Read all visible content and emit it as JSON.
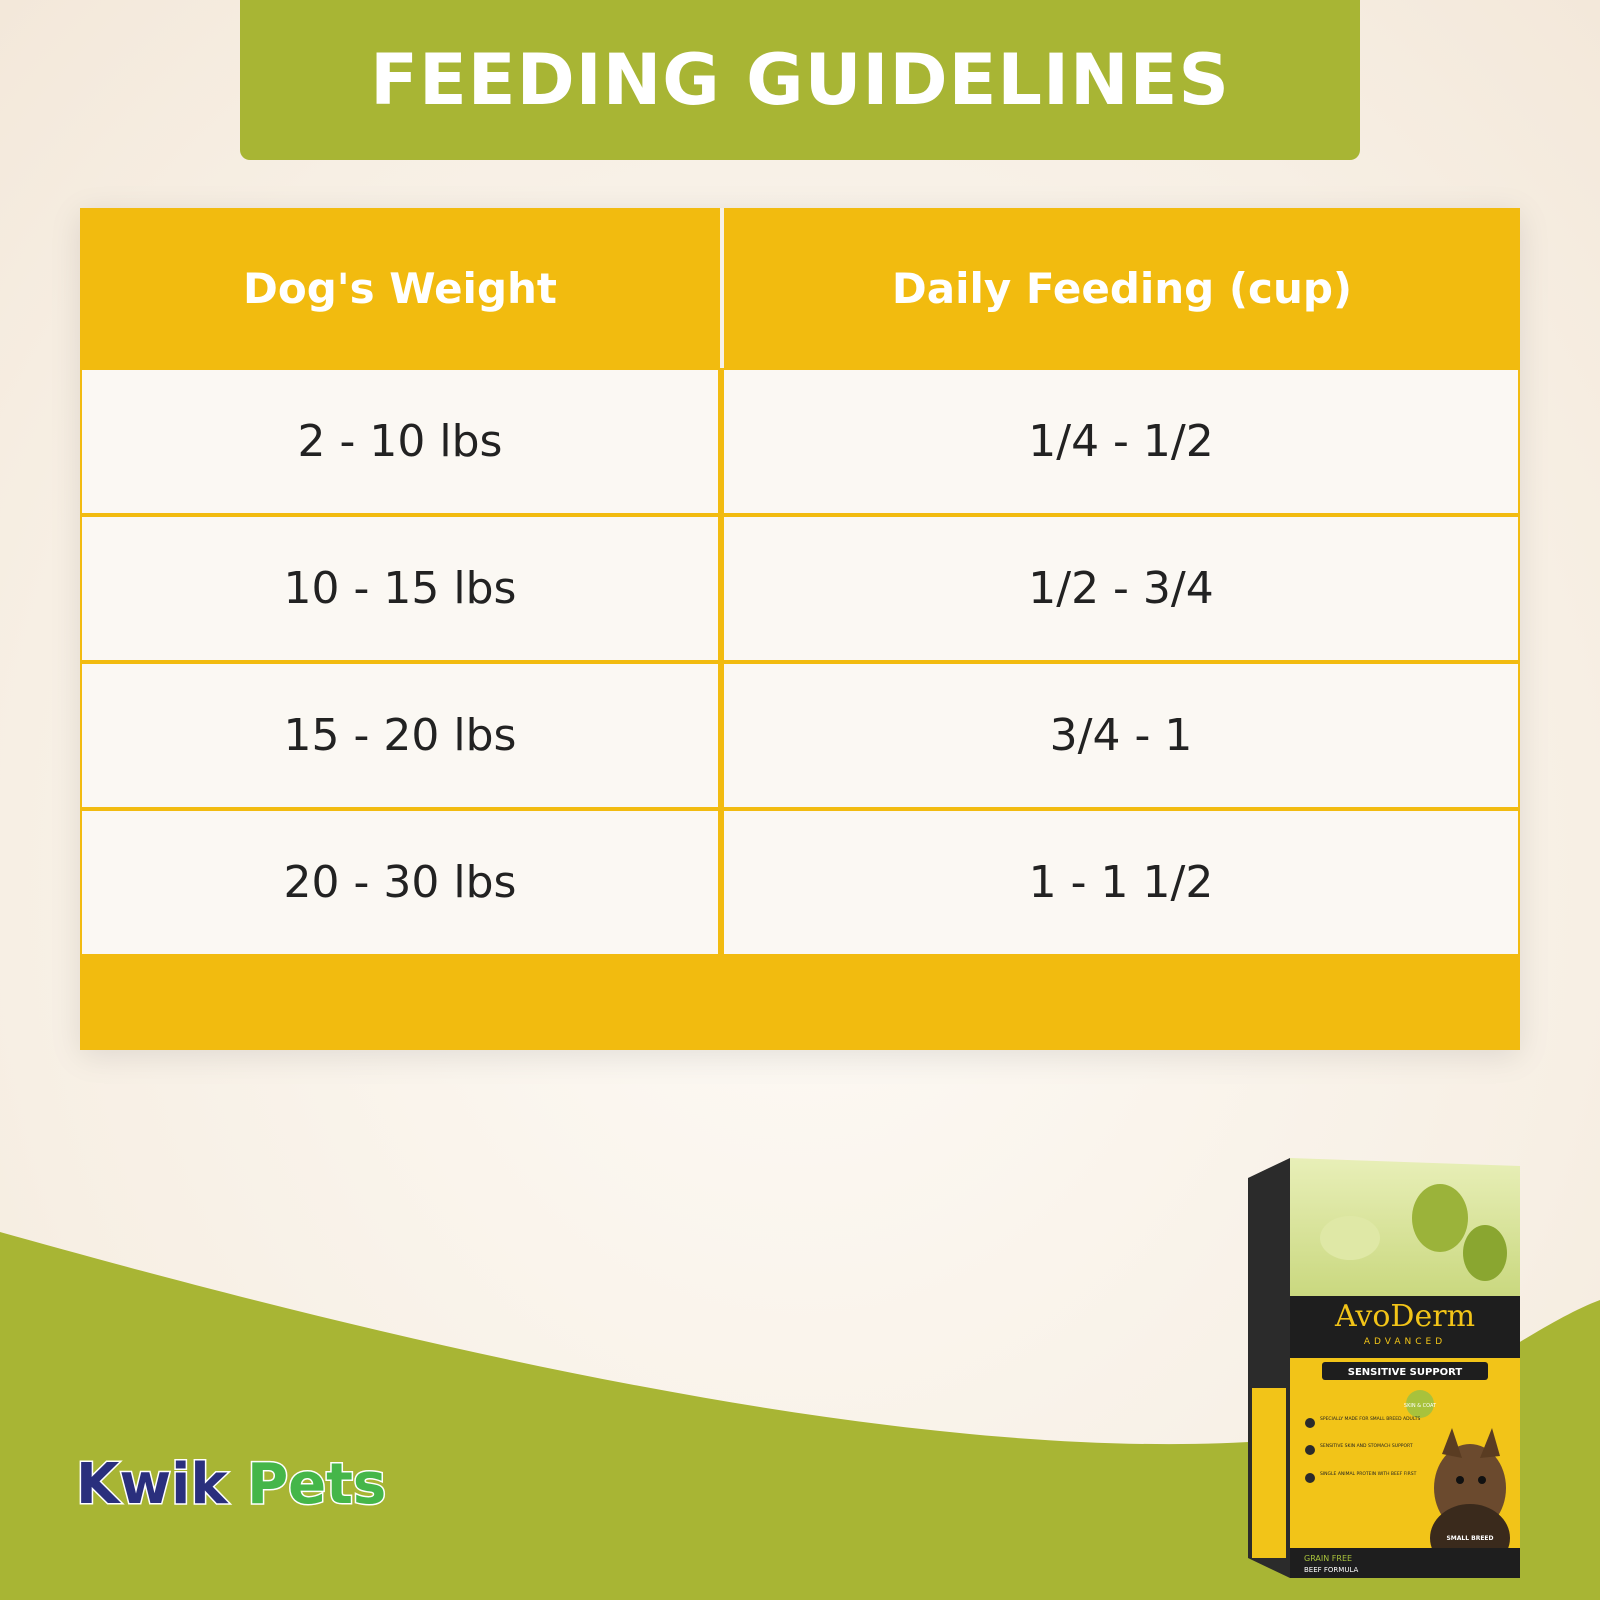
{
  "banner": {
    "title": "FEEDING GUIDELINES"
  },
  "table": {
    "headers": [
      "Dog's Weight",
      "Daily Feeding (cup)"
    ],
    "rows": [
      [
        "2 - 10 lbs",
        "1/4 - 1/2"
      ],
      [
        "10 - 15 lbs",
        "1/2 - 3/4"
      ],
      [
        "15 - 20 lbs",
        "3/4 - 1"
      ],
      [
        "20 - 30 lbs",
        "1 - 1 1/2"
      ]
    ]
  },
  "logo": {
    "part1": "Kwik",
    "part2": "Pets"
  },
  "product": {
    "brand": "AvoDerm",
    "line": "ADVANCED",
    "formula": "SENSITIVE SUPPORT",
    "badge": "SKIN & COAT",
    "features": [
      "SPECIALLY MADE FOR SMALL BREED ADULTS",
      "SENSITIVE SKIN AND STOMACH SUPPORT",
      "SINGLE ANIMAL PROTEIN WITH BEEF FIRST"
    ],
    "footer1": "GRAIN FREE",
    "footer2": "BEEF FORMULA",
    "size_tag": "SMALL BREED"
  },
  "colors": {
    "banner_green": "#a8b534",
    "table_yellow": "#f2bb0f",
    "cell_bg": "#fbf8f3",
    "logo_navy": "#2a2f7d",
    "logo_green": "#45b649"
  }
}
